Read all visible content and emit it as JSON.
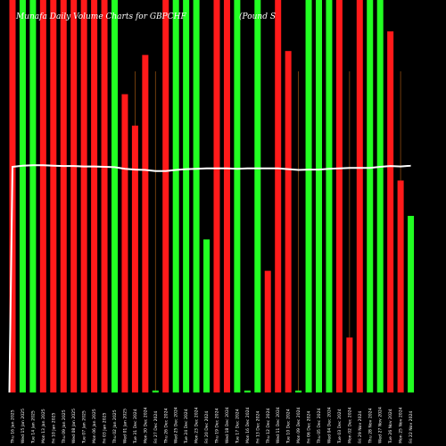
{
  "title_left": "Munafa Daily Volume Charts for GBPCHF",
  "title_right": "(Pound S",
  "colors": {
    "up": "#22ff22",
    "down": "#ff1a1a",
    "line": "#ffffff",
    "background": "#000000",
    "wick": "#8a4a10"
  },
  "chart_data": {
    "type": "bar",
    "ylim": [
      0,
      100
    ],
    "grid": false,
    "categories": [
      "Thu 16 Jan 2025",
      "Wed 15 Jan 2025",
      "Tue 14 Jan 2025",
      "Mon 13 Jan 2025",
      "Fri 10 Jan 2025",
      "Thu 09 Jan 2025",
      "Wed 08 Jan 2025",
      "Tue 07 Jan 2025",
      "Mon 06 Jan 2025",
      "Fri 03 Jan 2025",
      "Thu 02 Jan 2025",
      "Wed 01 Jan 2025",
      "Tue 31 Dec 2024",
      "Mon 30 Dec 2024",
      "Fri 27 Dec 2024",
      "Thu 26 Dec 2024",
      "Wed 25 Dec 2024",
      "Tue 24 Dec 2024",
      "Mon 23 Dec 2024",
      "Fri 20 Dec 2024",
      "Thu 19 Dec 2024",
      "Wed 18 Dec 2024",
      "Tue 17 Dec 2024",
      "Mon 16 Dec 2024",
      "Fri 13 Dec 2024",
      "Thu 12 Dec 2024",
      "Wed 11 Dec 2024",
      "Tue 10 Dec 2024",
      "Mon 09 Dec 2024",
      "Fri 06 Dec 2024",
      "Thu 05 Dec 2024",
      "Wed 04 Dec 2024",
      "Tue 03 Dec 2024",
      "Mon 02 Dec 2024",
      "Fri 29 Nov 2024",
      "Thu 28 Nov 2024",
      "Wed 27 Nov 2024",
      "Tue 26 Nov 2024",
      "Mon 25 Nov 2024",
      "Fri 22 Nov 2024"
    ],
    "values": [
      100,
      100,
      100,
      100,
      100,
      100,
      100,
      100,
      100,
      100,
      100,
      76,
      68,
      86,
      0.5,
      100,
      100,
      100,
      100,
      39,
      100,
      100,
      100,
      0.5,
      100,
      31,
      100,
      87,
      0.5,
      100,
      100,
      100,
      100,
      14,
      100,
      100,
      100,
      92,
      54,
      45
    ],
    "directions": [
      "down",
      "up",
      "up",
      "down",
      "down",
      "down",
      "down",
      "down",
      "down",
      "down",
      "up",
      "down",
      "down",
      "down",
      "up",
      "down",
      "up",
      "up",
      "up",
      "up",
      "down",
      "down",
      "up",
      "up",
      "up",
      "down",
      "down",
      "down",
      "up",
      "up",
      "up",
      "up",
      "down",
      "down",
      "down",
      "up",
      "up",
      "down",
      "down",
      "up"
    ],
    "wicks": [
      false,
      false,
      false,
      false,
      false,
      false,
      false,
      false,
      false,
      false,
      false,
      false,
      true,
      true,
      true,
      false,
      false,
      false,
      false,
      false,
      false,
      false,
      false,
      false,
      false,
      false,
      false,
      false,
      true,
      false,
      false,
      false,
      false,
      true,
      false,
      false,
      false,
      true,
      true,
      false
    ],
    "avg_line": [
      57.5,
      57.8,
      57.9,
      57.9,
      57.8,
      57.7,
      57.7,
      57.6,
      57.6,
      57.5,
      57.4,
      57.0,
      56.8,
      56.7,
      56.4,
      56.4,
      56.7,
      56.9,
      57.0,
      57.1,
      57.1,
      57.1,
      57.0,
      57.1,
      57.1,
      57.1,
      57.1,
      56.9,
      56.7,
      56.8,
      56.8,
      57.0,
      57.1,
      57.2,
      57.2,
      57.2,
      57.5,
      57.7,
      57.6,
      57.8
    ]
  }
}
